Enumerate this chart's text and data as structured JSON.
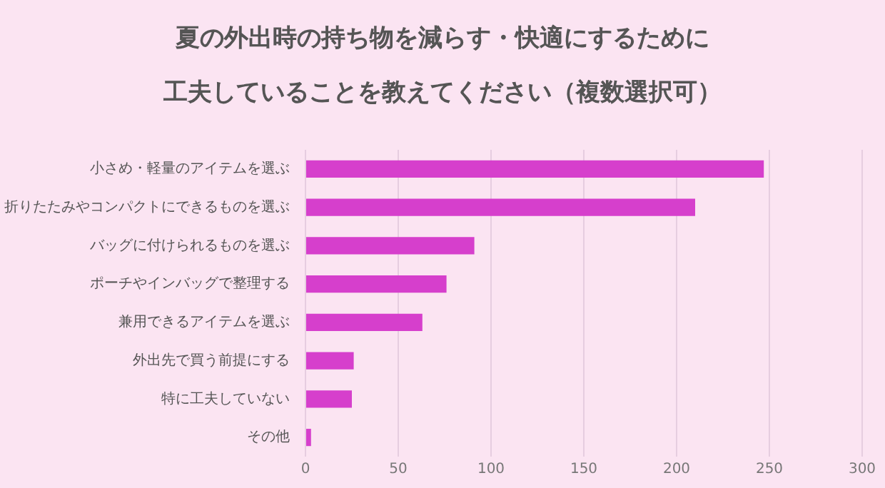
{
  "chart_data": {
    "type": "bar",
    "orientation": "horizontal",
    "title": [
      "夏の外出時の持ち物を減らす・快適にするために",
      "工夫していることを教えてください（複数選択可）"
    ],
    "categories": [
      "小さめ・軽量のアイテムを選ぶ",
      "折りたたみやコンパクトにできるものを選ぶ",
      "バッグに付けられるものを選ぶ",
      "ポーチやインバッグで整理する",
      "兼用できるアイテムを選ぶ",
      "外出先で買う前提にする",
      "特に工夫していない",
      "その他"
    ],
    "values": [
      247,
      210,
      91,
      76,
      63,
      26,
      25,
      3
    ],
    "color": "#d63fcc",
    "xlim": [
      0,
      300
    ],
    "xticks": [
      0,
      50,
      100,
      150,
      200,
      250,
      300
    ],
    "grid": "x"
  }
}
